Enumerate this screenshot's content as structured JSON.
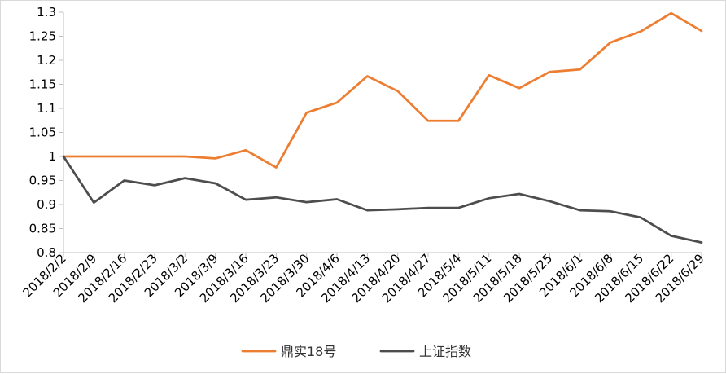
{
  "chart_data": {
    "type": "line",
    "categories": [
      "2018/2/2",
      "2018/2/9",
      "2018/2/16",
      "2018/2/23",
      "2018/3/2",
      "2018/3/9",
      "2018/3/16",
      "2018/3/23",
      "2018/3/30",
      "2018/4/6",
      "2018/4/13",
      "2018/4/20",
      "2018/4/27",
      "2018/5/4",
      "2018/5/11",
      "2018/5/18",
      "2018/5/25",
      "2018/6/1",
      "2018/6/8",
      "2018/6/15",
      "2018/6/22",
      "2018/6/29"
    ],
    "series": [
      {
        "name": "鼎实18号",
        "color": "#ED7D31",
        "values": [
          1.0,
          1.0,
          1.0,
          1.0,
          1.0,
          0.996,
          1.013,
          0.977,
          1.091,
          1.112,
          1.167,
          1.136,
          1.074,
          1.074,
          1.169,
          1.142,
          1.176,
          1.181,
          1.237,
          1.26,
          1.298,
          1.261
        ]
      },
      {
        "name": "上证指数",
        "color": "#4D4D4D",
        "values": [
          1.0,
          0.904,
          0.95,
          0.94,
          0.955,
          0.944,
          0.91,
          0.915,
          0.905,
          0.911,
          0.888,
          0.89,
          0.893,
          0.893,
          0.913,
          0.922,
          0.907,
          0.888,
          0.886,
          0.873,
          0.835,
          0.821
        ]
      }
    ],
    "yticks": [
      "1.3",
      "1.25",
      "1.2",
      "1.15",
      "1.1",
      "1.05",
      "1",
      "0.95",
      "0.9",
      "0.85",
      "0.8"
    ],
    "ylim": [
      0.8,
      1.3
    ],
    "grid": false,
    "legend_position": "bottom"
  }
}
